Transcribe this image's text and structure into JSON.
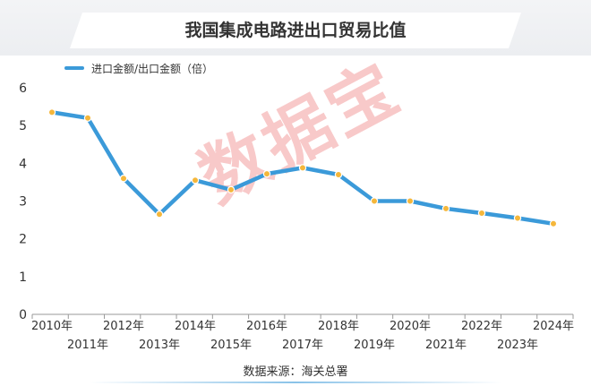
{
  "title": "我国集成电路进出口贸易比值",
  "source": "数据来源：海关总署",
  "watermark": "数据宝",
  "colors": {
    "line": "#3b9ad9",
    "marker": "#f5b73b",
    "axis": "#999999"
  },
  "chart_data": {
    "type": "line",
    "categories": [
      "2010年",
      "2011年",
      "2012年",
      "2013年",
      "2014年",
      "2015年",
      "2016年",
      "2017年",
      "2018年",
      "2019年",
      "2020年",
      "2021年",
      "2022年",
      "2023年",
      "2024年"
    ],
    "series": [
      {
        "name": "进口金额/出口金额（倍）",
        "values": [
          5.35,
          5.2,
          3.6,
          2.65,
          3.55,
          3.3,
          3.72,
          3.88,
          3.7,
          3.0,
          3.0,
          2.8,
          2.68,
          2.55,
          2.4
        ]
      }
    ],
    "yticks": [
      0,
      1,
      2,
      3,
      4,
      5,
      6
    ],
    "ylim": [
      0,
      6
    ]
  }
}
